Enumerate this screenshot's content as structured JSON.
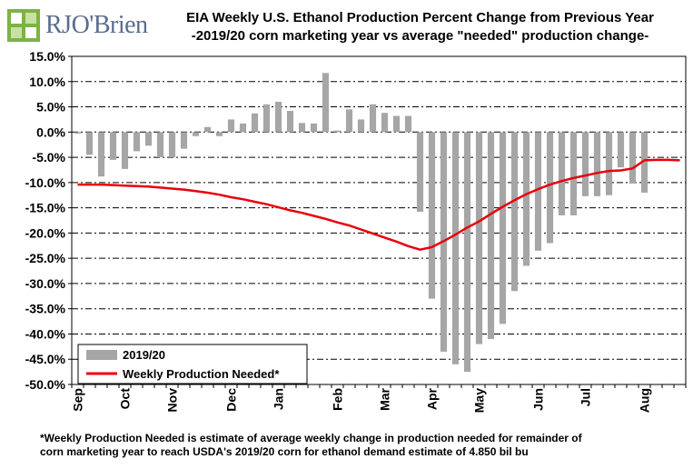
{
  "header": {
    "logo_text": "RJO'Brien",
    "title_line1": "EIA Weekly U.S. Ethanol Production Percent Change from Previous Year",
    "title_line2": "-2019/20 corn marketing year vs average \"needed\" production change-"
  },
  "footnote": {
    "line1": "*Weekly Production Needed is estimate of average weekly change in production needed for remainder of",
    "line2": "corn marketing year to reach USDA's 2019/20 corn for ethanol demand estimate of 4.850 bil bu"
  },
  "colors": {
    "bars": "#a6a6a6",
    "needed_line": "#e8000b",
    "logo_green": "#7cb342"
  },
  "chart_data": {
    "type": "bar",
    "ylim": [
      -50,
      15
    ],
    "y_ticks": [
      15,
      10,
      5,
      0,
      -5,
      -10,
      -15,
      -20,
      -25,
      -30,
      -35,
      -40,
      -45,
      -50
    ],
    "y_tick_labels": [
      "15.0%",
      "10.0%",
      "5.0%",
      "0.0%",
      "-5.0%",
      "-10.0%",
      "-15.0%",
      "-20.0%",
      "-25.0%",
      "-30.0%",
      "-35.0%",
      "-40.0%",
      "-45.0%",
      "-50.0%"
    ],
    "grid": true,
    "legend_position": "bottom-left",
    "x_month_labels": [
      {
        "label": "Sep",
        "week": 0
      },
      {
        "label": "Oct",
        "week": 4
      },
      {
        "label": "Nov",
        "week": 8
      },
      {
        "label": "Dec",
        "week": 13
      },
      {
        "label": "Jan",
        "week": 17
      },
      {
        "label": "Feb",
        "week": 22
      },
      {
        "label": "Mar",
        "week": 26
      },
      {
        "label": "Apr",
        "week": 30
      },
      {
        "label": "May",
        "week": 34
      },
      {
        "label": "Jun",
        "week": 39
      },
      {
        "label": "Jul",
        "week": 43
      },
      {
        "label": "Aug",
        "week": 48
      }
    ],
    "series": [
      {
        "name": "2019/20",
        "kind": "bar",
        "values": [
          -0.3,
          -4.5,
          -8.8,
          -5.5,
          -7.3,
          -3.8,
          -2.7,
          -5.0,
          -5.0,
          -3.3,
          -0.8,
          1.0,
          -0.8,
          2.5,
          1.7,
          3.7,
          5.5,
          6.0,
          4.2,
          1.8,
          1.7,
          11.7,
          0.3,
          4.5,
          2.5,
          5.5,
          3.8,
          3.2,
          3.2,
          -15.8,
          -33.0,
          -43.5,
          -46.0,
          -47.5,
          -42.0,
          -41.0,
          -38.0,
          -31.5,
          -26.5,
          -23.5,
          -22.0,
          -16.5,
          -16.5,
          -12.7,
          -12.7,
          -12.5,
          -7.0,
          -10.2,
          -12.0
        ]
      },
      {
        "name": "Weekly Production Needed*",
        "kind": "line",
        "values": [
          -10.4,
          -10.4,
          -10.4,
          -10.5,
          -10.6,
          -10.7,
          -10.8,
          -11.0,
          -11.2,
          -11.4,
          -11.7,
          -12.0,
          -12.4,
          -12.9,
          -13.3,
          -13.8,
          -14.3,
          -14.9,
          -15.5,
          -16.0,
          -16.6,
          -17.2,
          -17.9,
          -18.5,
          -19.3,
          -20.1,
          -20.9,
          -21.7,
          -22.6,
          -23.3,
          -22.8,
          -21.6,
          -20.3,
          -18.9,
          -17.7,
          -16.2,
          -14.8,
          -13.5,
          -12.3,
          -11.3,
          -10.4,
          -9.7,
          -9.1,
          -8.6,
          -8.1,
          -7.7,
          -7.6,
          -7.2,
          -5.6,
          -5.5,
          -5.5,
          -5.6
        ]
      }
    ]
  }
}
